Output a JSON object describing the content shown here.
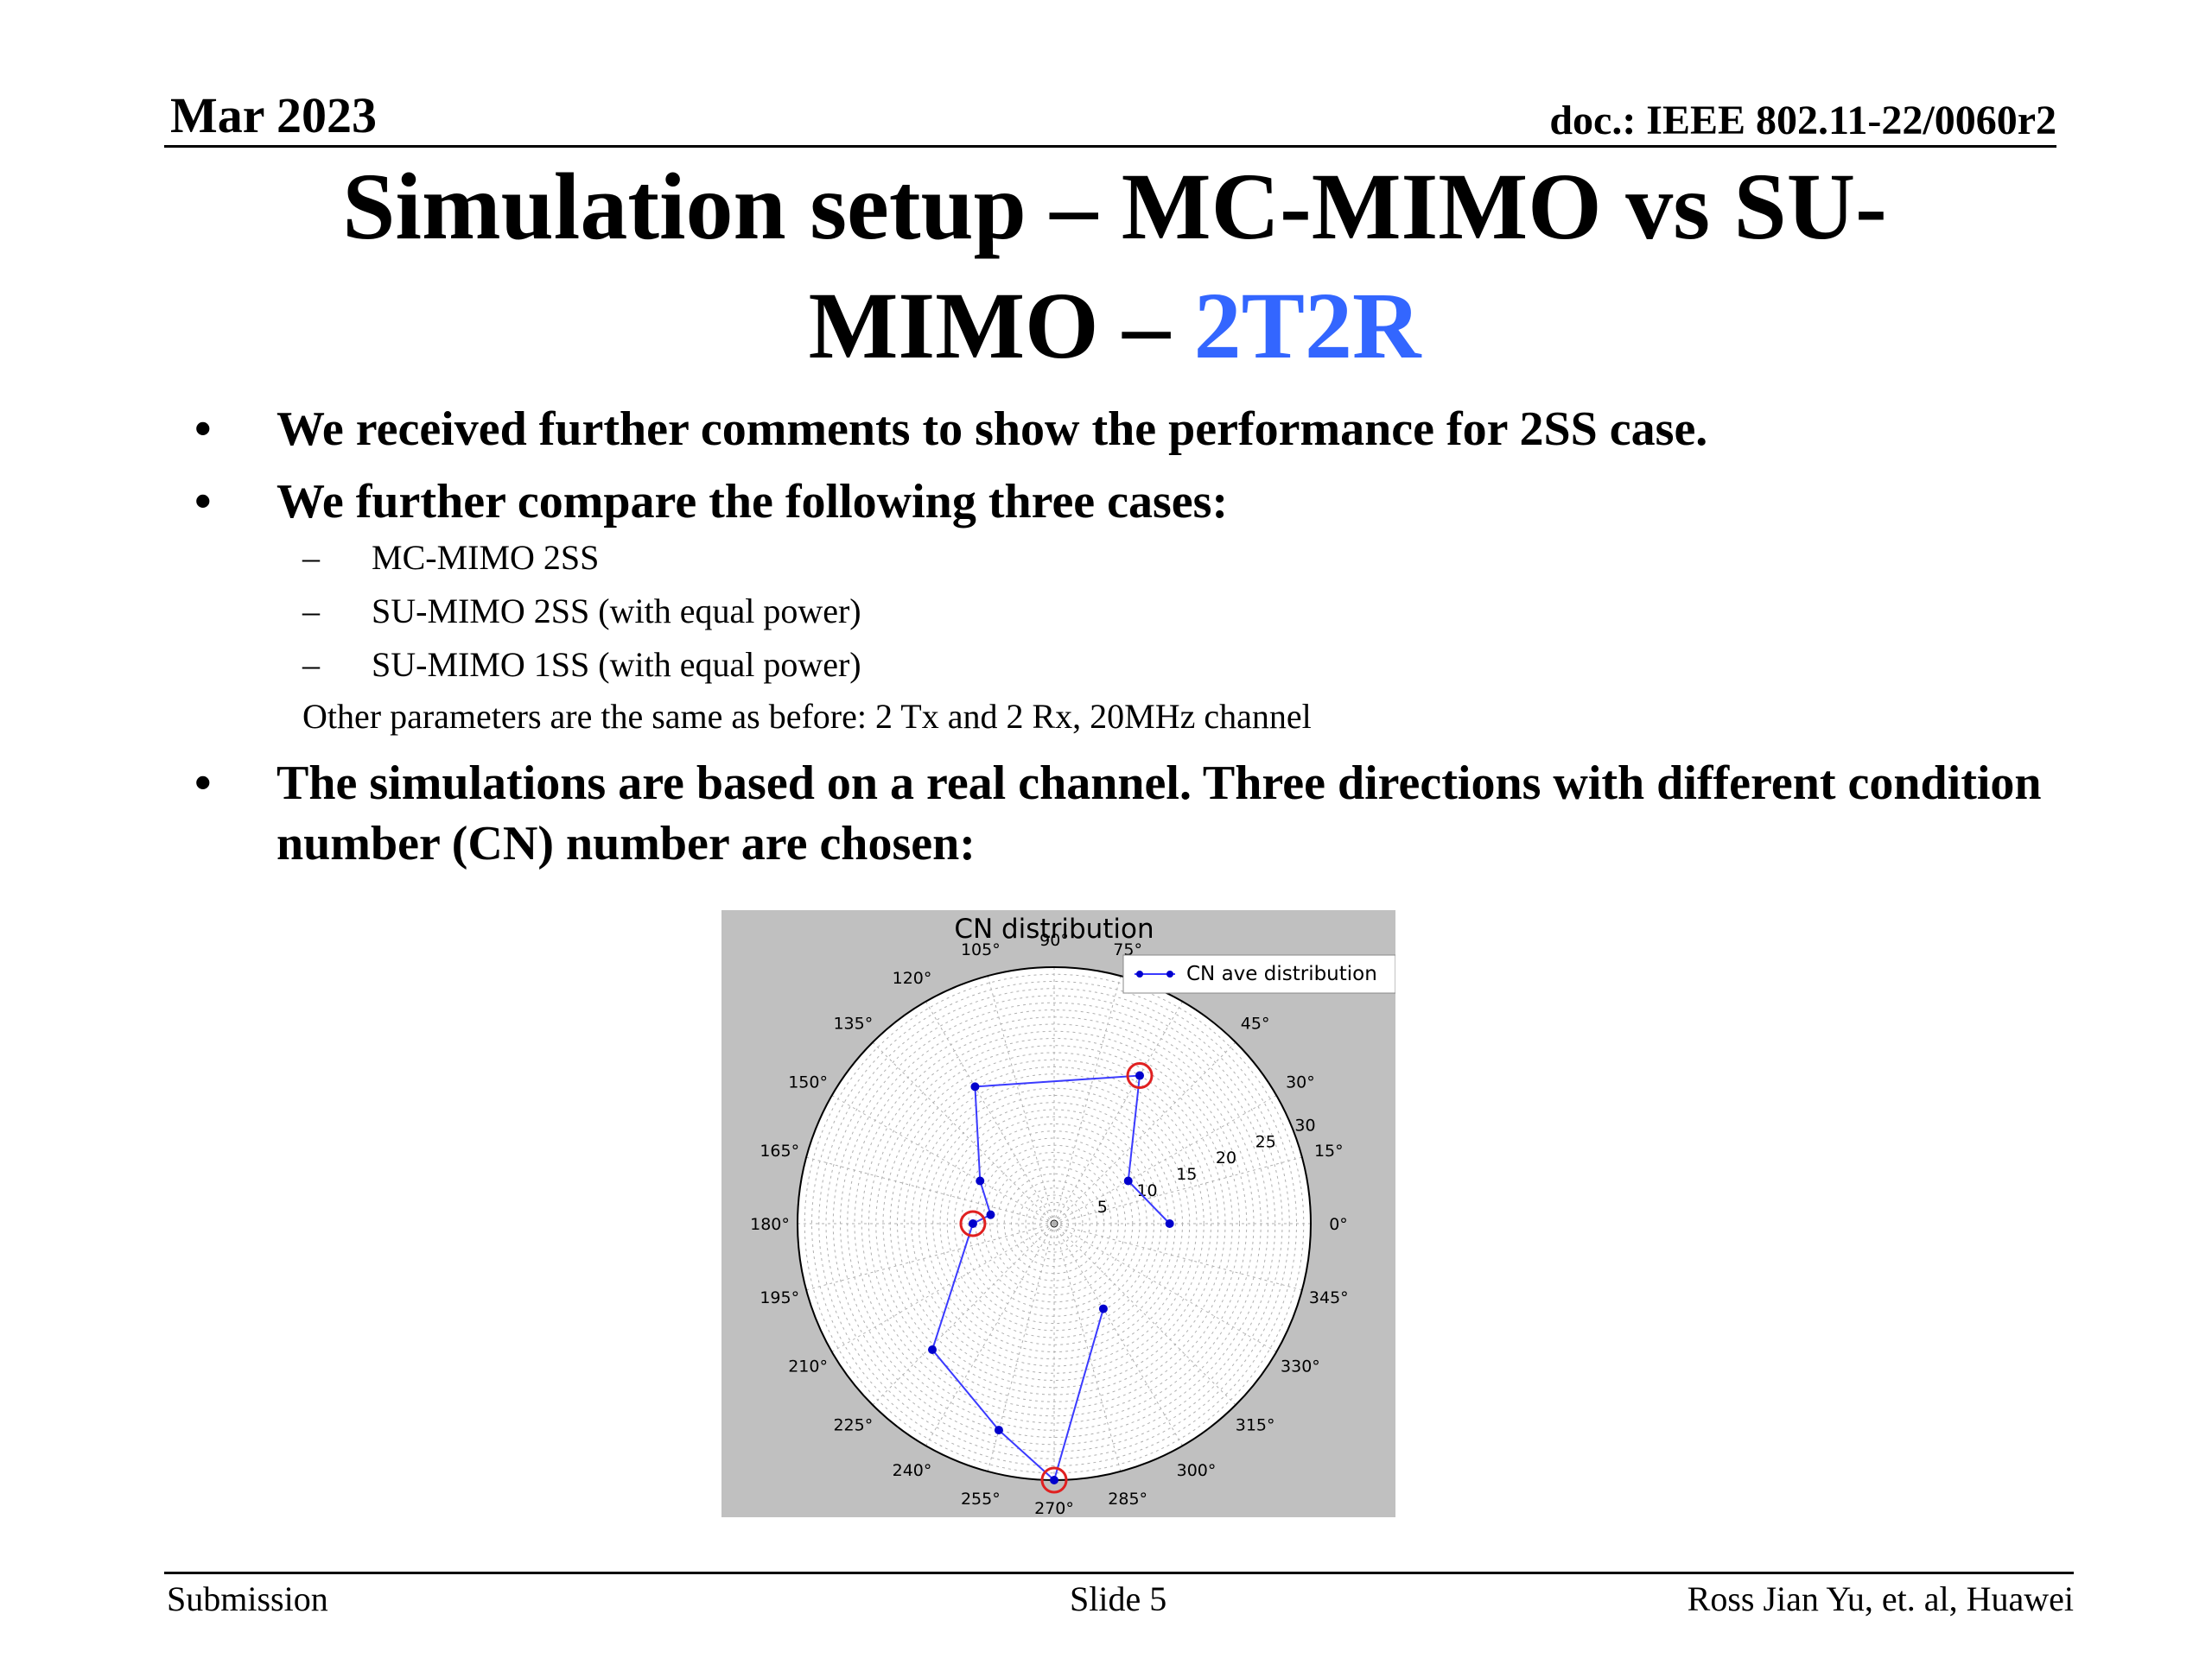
{
  "header": {
    "date": "Mar 2023",
    "doc_id": "doc.: IEEE 802.11-22/0060r2"
  },
  "title": {
    "line1": "Simulation setup – MC-MIMO vs SU-",
    "line2_prefix": "MIMO – ",
    "line2_accent": "2T2R",
    "accent_color": "#3366ff"
  },
  "bullets": [
    {
      "marker": "•",
      "text": "We received further comments to show the performance for 2SS case."
    },
    {
      "marker": "•",
      "text": "We further compare the following three cases:"
    },
    {
      "marker": "•",
      "text": "The simulations are based on a real channel. Three directions with different condition number (CN) number are chosen:"
    }
  ],
  "sub_items": [
    {
      "marker": "–",
      "text": "MC-MIMO 2SS"
    },
    {
      "marker": "–",
      "text": "SU-MIMO 2SS (with equal power)"
    },
    {
      "marker": "–",
      "text": "SU-MIMO 1SS (with equal power)"
    }
  ],
  "other_params": "Other parameters are the same as before: 2 Tx and 2 Rx, 20MHz channel",
  "chart_data": {
    "type": "polar-line",
    "title": "CN distribution",
    "legend": "CN ave distribution",
    "legend_position": "top-right",
    "background_color": "#c0c0c0",
    "line_color": "#3a3aff",
    "highlight_color": "#e02020",
    "r_max": 30,
    "r_ticks": [
      5,
      10,
      15,
      20,
      25,
      30
    ],
    "theta_ticks": [
      "0°",
      "15°",
      "30°",
      "45°",
      "60°",
      "75°",
      "90°",
      "105°",
      "120°",
      "135°",
      "150°",
      "165°",
      "180°",
      "195°",
      "210°",
      "225°",
      "240°",
      "255°",
      "270°",
      "285°",
      "300°",
      "315°",
      "330°",
      "345°"
    ],
    "grid": true,
    "points": [
      {
        "theta": 0,
        "r": 13.5
      },
      {
        "theta": 30,
        "r": 10
      },
      {
        "theta": 60,
        "r": 20
      },
      {
        "theta": 120,
        "r": 18.5
      },
      {
        "theta": 150,
        "r": 10
      },
      {
        "theta": 172,
        "r": 7.5
      },
      {
        "theta": 180,
        "r": 9.5
      },
      {
        "theta": 226,
        "r": 20.5
      },
      {
        "theta": 255,
        "r": 25
      },
      {
        "theta": 270,
        "r": 30
      },
      {
        "theta": 300,
        "r": 11.5
      }
    ],
    "highlighted_points": [
      {
        "theta": 60,
        "r": 20
      },
      {
        "theta": 180,
        "r": 9.5
      },
      {
        "theta": 270,
        "r": 30
      }
    ]
  },
  "footer": {
    "left": "Submission",
    "center": "Slide 5",
    "right": "Ross Jian Yu, et. al, Huawei"
  }
}
